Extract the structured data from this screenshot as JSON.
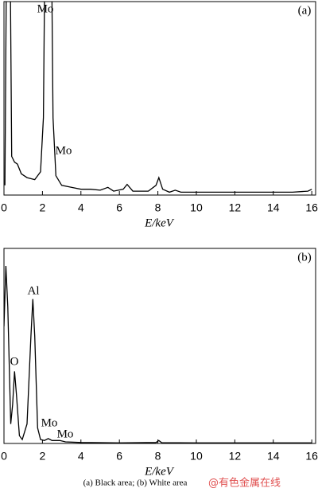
{
  "chart_data": [
    {
      "type": "line",
      "panel_label": "(a)",
      "xlabel": "E/keV",
      "color": "#000000",
      "annotations": [
        "Mo",
        "Mo"
      ],
      "x": [
        0.05,
        0.15,
        0.3,
        0.4,
        0.55,
        0.7,
        0.9,
        1.2,
        1.6,
        1.9,
        2.05,
        2.15,
        2.45,
        2.55,
        2.7,
        3.0,
        3.5,
        4.0,
        4.5,
        5.0,
        5.4,
        5.7,
        6.2,
        6.4,
        6.7,
        7.5,
        7.9,
        8.05,
        8.25,
        8.6,
        8.9,
        9.2,
        11,
        13,
        15,
        15.8,
        16
      ],
      "values": [
        5,
        150,
        150,
        20,
        17,
        16,
        11,
        9,
        8,
        12,
        40,
        150,
        150,
        40,
        10,
        5,
        4,
        3,
        3,
        2.5,
        4,
        2,
        3,
        5.5,
        2,
        2,
        5,
        9,
        3,
        1.5,
        2.5,
        1.5,
        1.5,
        1.5,
        1.5,
        2,
        3
      ],
      "xlim": [
        0,
        16.2
      ],
      "ylim": [
        0,
        100
      ],
      "xticks": [
        0,
        2,
        4,
        6,
        8,
        10,
        12,
        14,
        16
      ]
    },
    {
      "type": "line",
      "panel_label": "(b)",
      "xlabel": "E/keV",
      "color": "#000000",
      "annotations": [
        "Al",
        "O",
        "Mo",
        "Mo"
      ],
      "x": [
        0.0,
        0.1,
        0.2,
        0.35,
        0.45,
        0.55,
        0.65,
        0.8,
        0.95,
        1.2,
        1.4,
        1.5,
        1.6,
        1.75,
        1.9,
        2.1,
        2.3,
        2.5,
        2.9,
        3.2,
        4,
        6,
        7.9,
        8.05,
        8.2,
        10,
        16
      ],
      "values": [
        60,
        91,
        70,
        10,
        20,
        37,
        25,
        4,
        2,
        10,
        55,
        74,
        55,
        8,
        2,
        1.5,
        2.5,
        1.5,
        1.5,
        0.8,
        0.5,
        0.3,
        0.5,
        1.5,
        0.4,
        0.3,
        0.3
      ],
      "xlim": [
        0,
        16.2
      ],
      "ylim": [
        0,
        100
      ],
      "xticks": [
        0,
        2,
        4,
        6,
        8,
        10,
        12,
        14,
        16
      ]
    }
  ],
  "caption": "(a) Black area; (b) White area",
  "watermark": "@有色金属在线"
}
